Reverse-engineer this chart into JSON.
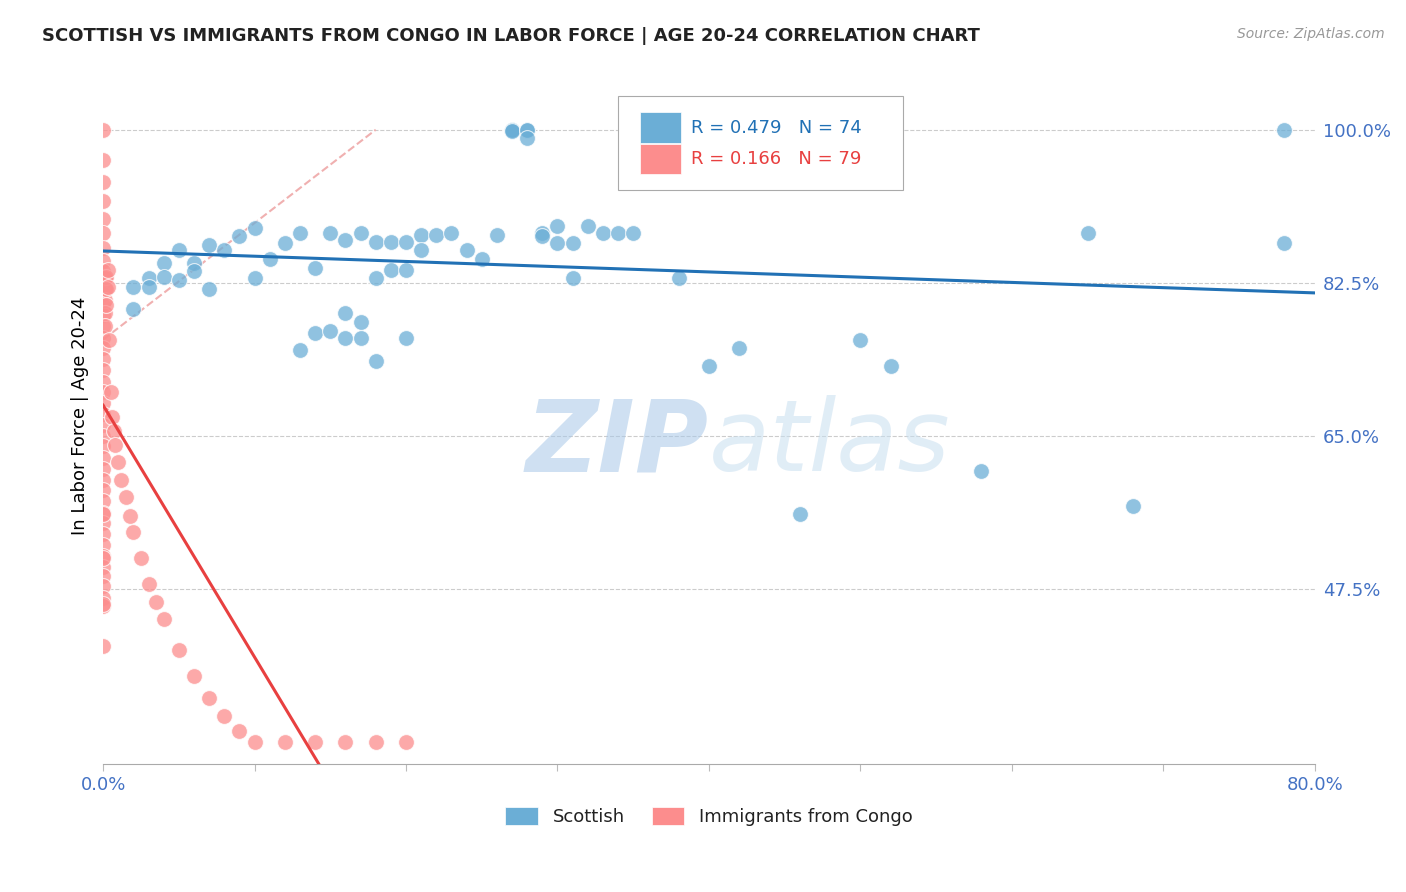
{
  "title": "SCOTTISH VS IMMIGRANTS FROM CONGO IN LABOR FORCE | AGE 20-24 CORRELATION CHART",
  "source": "Source: ZipAtlas.com",
  "ylabel": "In Labor Force | Age 20-24",
  "xlim": [
    0.0,
    0.8
  ],
  "ylim": [
    0.275,
    1.07
  ],
  "yticks": [
    0.475,
    0.65,
    0.825,
    1.0
  ],
  "ytick_labels": [
    "47.5%",
    "65.0%",
    "82.5%",
    "100.0%"
  ],
  "xticks": [
    0.0,
    0.1,
    0.2,
    0.3,
    0.4,
    0.5,
    0.6,
    0.7,
    0.8
  ],
  "xtick_labels": [
    "0.0%",
    "",
    "",
    "",
    "",
    "",
    "",
    "",
    "80.0%"
  ],
  "scatter_blue_color": "#6baed6",
  "scatter_pink_color": "#fc8d8d",
  "trendline_blue_color": "#2171b5",
  "trendline_pink_color": "#e84040",
  "trendline_pink_dashed_color": "#f0b0b0",
  "watermark_color": "#c8dff0",
  "axis_color": "#4472c4",
  "blue_x": [
    0.02,
    0.02,
    0.03,
    0.03,
    0.04,
    0.04,
    0.05,
    0.05,
    0.06,
    0.06,
    0.07,
    0.07,
    0.08,
    0.09,
    0.1,
    0.1,
    0.11,
    0.12,
    0.13,
    0.13,
    0.14,
    0.14,
    0.15,
    0.15,
    0.16,
    0.16,
    0.17,
    0.17,
    0.18,
    0.18,
    0.19,
    0.19,
    0.2,
    0.2,
    0.21,
    0.21,
    0.22,
    0.23,
    0.24,
    0.25,
    0.26,
    0.27,
    0.27,
    0.27,
    0.27,
    0.27,
    0.28,
    0.28,
    0.28,
    0.29,
    0.29,
    0.3,
    0.3,
    0.31,
    0.31,
    0.32,
    0.33,
    0.34,
    0.35,
    0.38,
    0.4,
    0.42,
    0.46,
    0.5,
    0.52,
    0.58,
    0.65,
    0.68,
    0.78,
    0.78,
    0.16,
    0.17,
    0.18,
    0.2
  ],
  "blue_y": [
    0.82,
    0.795,
    0.83,
    0.82,
    0.848,
    0.832,
    0.862,
    0.828,
    0.848,
    0.838,
    0.868,
    0.818,
    0.862,
    0.878,
    0.888,
    0.83,
    0.852,
    0.87,
    0.882,
    0.748,
    0.842,
    0.768,
    0.882,
    0.77,
    0.874,
    0.79,
    0.882,
    0.78,
    0.872,
    0.83,
    0.872,
    0.84,
    0.872,
    0.84,
    0.88,
    0.862,
    0.88,
    0.882,
    0.862,
    0.852,
    0.88,
    1.0,
    1.0,
    1.0,
    1.0,
    0.998,
    1.0,
    1.0,
    0.99,
    0.882,
    0.878,
    0.89,
    0.87,
    0.87,
    0.83,
    0.89,
    0.882,
    0.882,
    0.882,
    0.83,
    0.73,
    0.75,
    0.56,
    0.76,
    0.73,
    0.61,
    0.882,
    0.57,
    0.87,
    1.0,
    0.762,
    0.762,
    0.735,
    0.762
  ],
  "pink_x": [
    0.0,
    0.0,
    0.0,
    0.0,
    0.0,
    0.0,
    0.0,
    0.0,
    0.0,
    0.0,
    0.0,
    0.0,
    0.0,
    0.0,
    0.0,
    0.0,
    0.0,
    0.0,
    0.0,
    0.0,
    0.0,
    0.0,
    0.0,
    0.0,
    0.0,
    0.0,
    0.0,
    0.0,
    0.0,
    0.0,
    0.0,
    0.0,
    0.0,
    0.0,
    0.0,
    0.0,
    0.0,
    0.0,
    0.0,
    0.0,
    0.001,
    0.001,
    0.001,
    0.001,
    0.001,
    0.002,
    0.002,
    0.002,
    0.003,
    0.003,
    0.004,
    0.005,
    0.006,
    0.007,
    0.008,
    0.01,
    0.012,
    0.015,
    0.018,
    0.02,
    0.025,
    0.03,
    0.035,
    0.04,
    0.05,
    0.06,
    0.07,
    0.08,
    0.09,
    0.1,
    0.12,
    0.14,
    0.16,
    0.18,
    0.2,
    0.0,
    0.0,
    0.0,
    0.0
  ],
  "pink_y": [
    1.0,
    0.965,
    0.94,
    0.918,
    0.898,
    0.882,
    0.865,
    0.85,
    0.838,
    0.825,
    0.812,
    0.8,
    0.788,
    0.775,
    0.762,
    0.75,
    0.738,
    0.725,
    0.712,
    0.7,
    0.688,
    0.675,
    0.662,
    0.65,
    0.638,
    0.625,
    0.612,
    0.6,
    0.588,
    0.575,
    0.562,
    0.55,
    0.538,
    0.525,
    0.512,
    0.5,
    0.49,
    0.478,
    0.465,
    0.455,
    0.83,
    0.818,
    0.805,
    0.79,
    0.775,
    0.832,
    0.818,
    0.8,
    0.84,
    0.82,
    0.76,
    0.7,
    0.672,
    0.655,
    0.64,
    0.62,
    0.6,
    0.58,
    0.558,
    0.54,
    0.51,
    0.48,
    0.46,
    0.44,
    0.405,
    0.375,
    0.35,
    0.33,
    0.312,
    0.3,
    0.3,
    0.3,
    0.3,
    0.3,
    0.3,
    0.56,
    0.51,
    0.458,
    0.41
  ]
}
